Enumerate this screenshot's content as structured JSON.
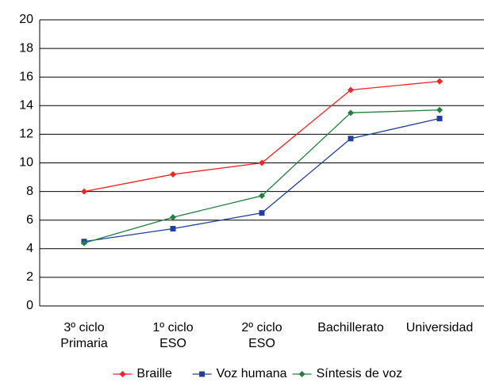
{
  "chart_data": {
    "type": "line",
    "categories": [
      "3º ciclo\nPrimaria",
      "1º ciclo\nESO",
      "2º ciclo\nESO",
      "Bachillerato",
      "Universidad"
    ],
    "series": [
      {
        "name": "Braille",
        "color": "#ff2020",
        "marker": "diamond",
        "values": [
          8.0,
          9.2,
          10.0,
          15.1,
          15.7
        ]
      },
      {
        "name": "Voz humana",
        "color": "#2040a0",
        "marker": "square",
        "values": [
          4.5,
          5.4,
          6.5,
          11.7,
          13.1
        ]
      },
      {
        "name": "Síntesis de voz",
        "color": "#208040",
        "marker": "diamond",
        "values": [
          4.4,
          6.2,
          7.7,
          13.5,
          13.7
        ]
      }
    ],
    "ylim": [
      0,
      20
    ],
    "yticks": [
      0,
      2,
      4,
      6,
      8,
      10,
      12,
      14,
      16,
      18,
      20
    ],
    "grid": true,
    "legend": "bottom"
  }
}
